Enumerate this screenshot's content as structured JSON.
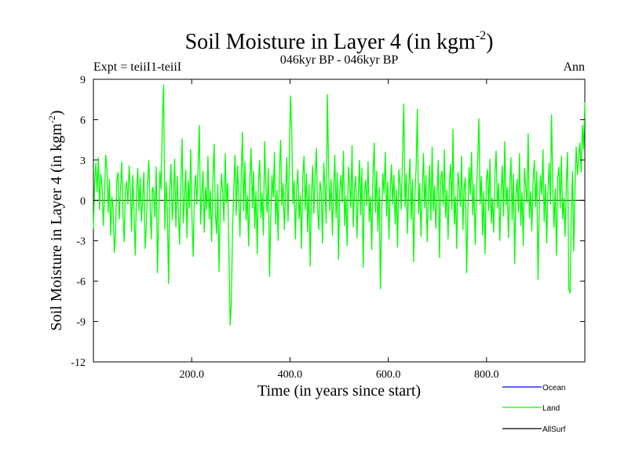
{
  "chart_data": {
    "type": "line",
    "title_main": "Soil Moisture in Layer 4 (in kgm",
    "title_sup": "-2",
    "title_close": ")",
    "subtitle_left": "Expt = teiiI1-teiiI",
    "subtitle_center": "046kyr BP - 046kyr BP",
    "subtitle_right": "Ann",
    "xlabel": "Time (in years since start)",
    "ylabel_main": "Soil Moisture in Layer 4 (in kgm",
    "ylabel_sup": "-2",
    "ylabel_close": ")",
    "xlim": [
      0,
      1000
    ],
    "ylim": [
      -12,
      9
    ],
    "xticks": [
      200,
      400,
      600,
      800
    ],
    "xtick_labels": [
      "200.0",
      "400.0",
      "600.0",
      "800.0"
    ],
    "yticks": [
      9,
      6,
      3,
      0,
      -3,
      -6,
      -9,
      -12
    ],
    "ytick_labels": [
      "9",
      "6",
      "3",
      "0",
      "-3",
      "-6",
      "-9",
      "-12"
    ],
    "zero_line": true,
    "legend_position": "bottom-right",
    "series": [
      {
        "name": "Land",
        "color": "#00ff00",
        "values": [
          -2.1,
          1.3,
          2.8,
          0.6,
          3.2,
          -0.7,
          2.0,
          1.1,
          -1.9,
          0.4,
          3.4,
          2.2,
          -0.9,
          1.6,
          -2.6,
          0.3,
          -0.6,
          -3.9,
          -2.4,
          1.5,
          2.1,
          -1.4,
          0.8,
          2.9,
          -1.2,
          -3.1,
          0.9,
          1.4,
          -0.3,
          2.6,
          0.7,
          -2.3,
          1.9,
          -1.0,
          -4.1,
          0.5,
          2.4,
          -0.8,
          1.7,
          -1.6,
          0.2,
          2.1,
          -3.6,
          -1.8,
          1.2,
          3.0,
          -0.4,
          -2.9,
          1.0,
          0.6,
          -1.3,
          2.5,
          -5.4,
          -1.1,
          2.2,
          0.8,
          6.1,
          8.6,
          -2.2,
          1.4,
          -0.5,
          -6.2,
          0.9,
          2.7,
          -1.5,
          0.4,
          3.1,
          -2.0,
          1.8,
          -0.9,
          -3.3,
          1.1,
          4.6,
          -1.7,
          0.2,
          2.3,
          -2.8,
          1.5,
          -0.6,
          3.8,
          -1.2,
          -4.2,
          0.7,
          1.9,
          -0.3,
          2.6,
          5.6,
          -1.8,
          0.5,
          2.2,
          -2.4,
          1.0,
          -0.7,
          3.3,
          -1.4,
          0.8,
          -3.1,
          1.6,
          4.2,
          -0.9,
          -2.5,
          1.2,
          -5.3,
          -0.4,
          2.0,
          0.6,
          -1.6,
          3.5,
          -0.2,
          1.3,
          -3.8,
          -9.3,
          -7.6,
          -2.0,
          0.9,
          3.4,
          -1.1,
          2.6,
          0.3,
          -2.7,
          1.8,
          5.1,
          -0.8,
          2.9,
          -1.5,
          0.4,
          -3.4,
          1.6,
          3.9,
          -0.6,
          2.2,
          -2.1,
          0.7,
          -4.0,
          1.4,
          3.0,
          -1.3,
          0.5,
          -2.6,
          4.4,
          1.1,
          -0.9,
          2.4,
          -5.7,
          -1.2,
          1.9,
          0.2,
          3.6,
          -1.8,
          0.8,
          -3.0,
          2.1,
          4.5,
          -0.4,
          1.3,
          -2.2,
          0.6,
          3.2,
          -1.6,
          2.7,
          7.8,
          5.2,
          -0.3,
          1.5,
          -2.9,
          0.9,
          2.3,
          -1.4,
          0.4,
          -3.6,
          1.8,
          3.3,
          -0.7,
          2.0,
          -2.4,
          1.2,
          -4.9,
          0.3,
          2.6,
          -1.0,
          1.7,
          3.9,
          -0.5,
          -2.2,
          1.4,
          0.6,
          -3.2,
          2.8,
          1.0,
          -1.7,
          7.9,
          2.2,
          -0.8,
          1.6,
          -2.6,
          0.5,
          3.4,
          -1.3,
          2.1,
          -4.4,
          0.8,
          1.9,
          -0.2,
          3.7,
          -1.9,
          0.4,
          -3.4,
          2.5,
          1.3,
          -0.6,
          4.1,
          -2.0,
          0.9,
          1.8,
          -2.8,
          0.2,
          3.0,
          -1.1,
          2.4,
          -5.0,
          0.7,
          1.5,
          -0.4,
          2.9,
          -1.6,
          0.3,
          -3.7,
          1.7,
          4.3,
          -0.9,
          2.2,
          -2.3,
          1.0,
          -6.6,
          -1.4,
          2.0,
          0.5,
          3.6,
          -1.2,
          1.4,
          -2.9,
          0.6,
          2.7,
          -0.3,
          1.9,
          -1.8,
          0.8,
          -3.5,
          2.3,
          1.2,
          -0.7,
          3.4,
          7.2,
          -0.5,
          2.0,
          -2.5,
          0.9,
          3.1,
          -1.4,
          1.6,
          -4.6,
          0.4,
          2.4,
          6.8,
          -1.0,
          1.3,
          -2.7,
          0.7,
          3.5,
          -0.6,
          1.9,
          -3.1,
          0.2,
          2.6,
          -1.5,
          4.0,
          -0.8,
          1.1,
          -2.1,
          0.5,
          3.0,
          -4.3,
          1.6,
          2.2,
          -0.4,
          3.8,
          -1.3,
          0.8,
          -2.9,
          1.4,
          2.7,
          -0.7,
          5.3,
          -1.8,
          0.3,
          -3.6,
          2.1,
          1.0,
          -0.5,
          3.3,
          -2.2,
          0.9,
          1.7,
          -5.4,
          -0.9,
          2.5,
          0.4,
          3.6,
          -1.1,
          1.2,
          -3.3,
          0.6,
          2.9,
          6.1,
          -0.3,
          1.8,
          -2.6,
          0.7,
          -4.0,
          1.5,
          2.3,
          -0.8,
          3.1,
          -1.7,
          0.2,
          -2.4,
          1.9,
          3.7,
          -0.6,
          1.3,
          -3.0,
          0.5,
          2.6,
          -1.2,
          4.4,
          -0.4,
          1.0,
          -2.8,
          0.8,
          3.2,
          -1.5,
          2.0,
          -4.7,
          0.3,
          1.6,
          -0.9,
          3.5,
          -1.9,
          0.6,
          -3.4,
          2.4,
          1.1,
          -0.2,
          5.0,
          -1.3,
          0.7,
          -2.3,
          1.5,
          3.0,
          -0.5,
          2.2,
          -5.9,
          -0.7,
          1.9,
          0.4,
          3.8,
          -1.6,
          1.2,
          -3.2,
          0.5,
          2.8,
          -0.3,
          6.4,
          1.0,
          -2.0,
          0.9,
          -4.1,
          1.7,
          2.5,
          -0.6,
          3.3,
          -1.4,
          0.2,
          -2.7,
          1.4,
          3.6,
          -6.6,
          -6.9,
          -1.1,
          2.2,
          -3.8,
          0.8,
          4.0,
          1.9,
          3.2,
          4.3,
          2.1,
          5.6,
          3.8,
          7.3
        ]
      },
      {
        "name": "Ocean",
        "color": "#0000ff",
        "values": []
      },
      {
        "name": "AllSurf",
        "color": "#000000",
        "values": []
      }
    ],
    "legend": [
      {
        "name": "Ocean",
        "color": "#0000ff"
      },
      {
        "name": "Land",
        "color": "#00ff00"
      },
      {
        "name": "AllSurf",
        "color": "#000000"
      }
    ]
  }
}
